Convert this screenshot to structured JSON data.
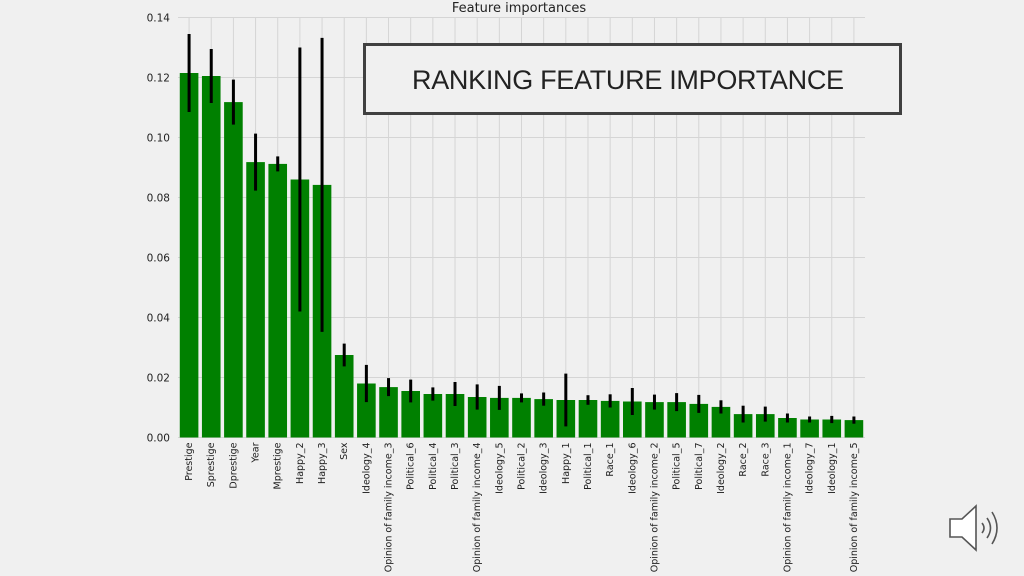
{
  "slide": {
    "title": "RANKING FEATURE IMPORTANCE",
    "audio_icon": "speaker-icon"
  },
  "colors": {
    "bar": "#008000",
    "error_bar": "#000000",
    "grid": "#d5d5d5",
    "plot_bg": "#f0f0f0"
  },
  "chart_data": {
    "type": "bar",
    "title": "Feature importances",
    "xlabel": "",
    "ylabel": "",
    "ylim": [
      0,
      0.14
    ],
    "yticks": [
      0.0,
      0.02,
      0.04,
      0.06,
      0.08,
      0.1,
      0.12,
      0.14
    ],
    "ytick_labels": [
      "0.00",
      "0.02",
      "0.04",
      "0.06",
      "0.08",
      "0.10",
      "0.12",
      "0.14"
    ],
    "grid": true,
    "categories": [
      "Prestige",
      "Sprestige",
      "Dprestige",
      "Year",
      "Mprestige",
      "Happy_2",
      "Happy_3",
      "Sex",
      "Ideology_4",
      "Opinion of family income_3",
      "Political_6",
      "Political_4",
      "Political_3",
      "Opinion of family income_4",
      "Ideology_5",
      "Political_2",
      "Ideology_3",
      "Happy_1",
      "Political_1",
      "Race_1",
      "Ideology_6",
      "Opinion of family income_2",
      "Political_5",
      "Political_7",
      "Ideology_2",
      "Race_2",
      "Race_3",
      "Opinion of family income_1",
      "Ideology_7",
      "Ideology_1",
      "Opinion of family income_5"
    ],
    "values": [
      0.1215,
      0.1205,
      0.1118,
      0.0918,
      0.0912,
      0.086,
      0.0842,
      0.0275,
      0.018,
      0.0168,
      0.0155,
      0.0145,
      0.0145,
      0.0135,
      0.0132,
      0.0132,
      0.0128,
      0.0125,
      0.0125,
      0.0122,
      0.012,
      0.0118,
      0.0118,
      0.0112,
      0.0102,
      0.0078,
      0.0078,
      0.0065,
      0.006,
      0.006,
      0.0058
    ],
    "errors": [
      0.013,
      0.009,
      0.0075,
      0.0095,
      0.0025,
      0.044,
      0.049,
      0.0038,
      0.0062,
      0.003,
      0.0038,
      0.0022,
      0.004,
      0.0042,
      0.004,
      0.0015,
      0.0022,
      0.0088,
      0.0016,
      0.0022,
      0.0045,
      0.0025,
      0.003,
      0.003,
      0.0022,
      0.0028,
      0.0025,
      0.0015,
      0.001,
      0.0012,
      0.0012
    ]
  }
}
